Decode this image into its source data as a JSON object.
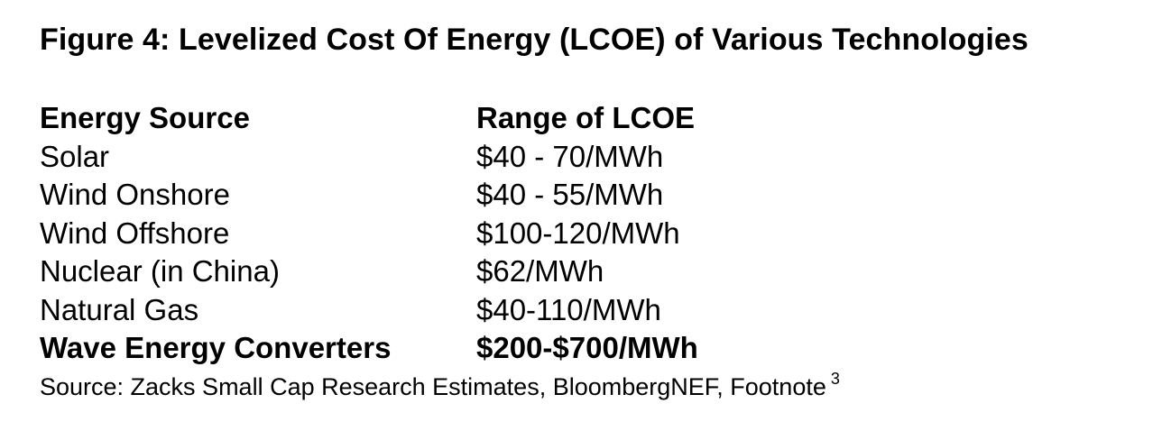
{
  "figure": {
    "title": "Figure 4: Levelized Cost Of Energy (LCOE) of Various Technologies"
  },
  "table": {
    "headers": {
      "source": "Energy Source",
      "range": "Range of LCOE"
    },
    "rows": [
      {
        "source": "Solar",
        "range": "$40 - 70/MWh",
        "bold": false
      },
      {
        "source": "Wind Onshore",
        "range": "$40 - 55/MWh",
        "bold": false
      },
      {
        "source": "Wind Offshore",
        "range": "$100-120/MWh",
        "bold": false
      },
      {
        "source": "Nuclear (in China)",
        "range": "$62/MWh",
        "bold": false
      },
      {
        "source": "Natural Gas",
        "range": "$40-110/MWh",
        "bold": false
      },
      {
        "source": "Wave Energy Converters",
        "range": "$200-$700/MWh",
        "bold": true
      }
    ]
  },
  "source_note": {
    "text": "Source: Zacks Small Cap Research Estimates, BloombergNEF, Footnote",
    "footnote_marker": "3"
  }
}
